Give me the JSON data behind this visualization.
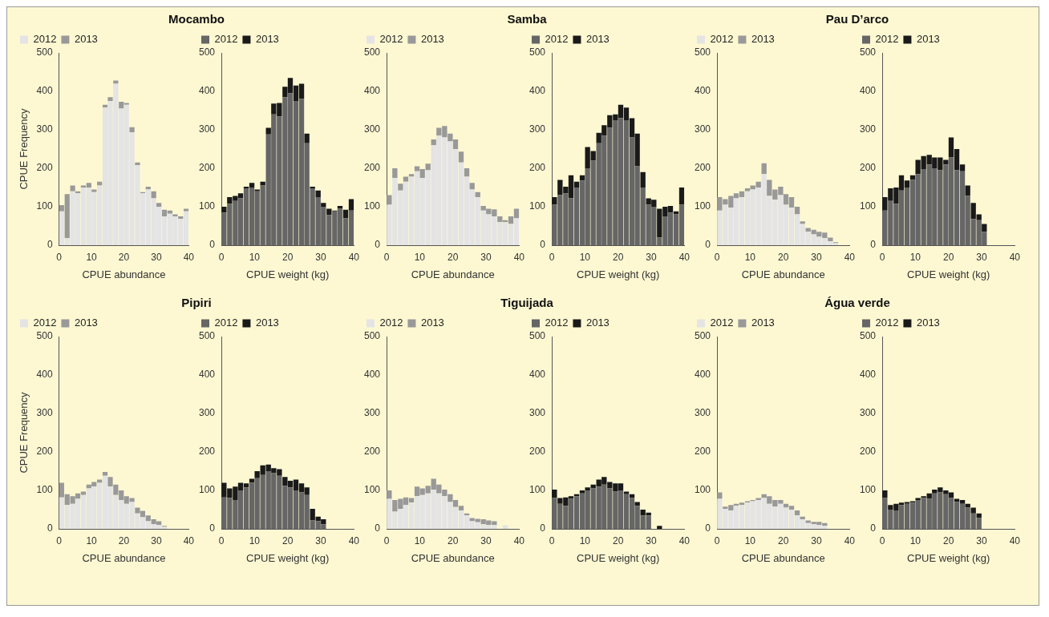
{
  "chart_data": [
    {
      "type": "bar",
      "title": "Mocambo",
      "xlabel": "CPUE abundance",
      "ylabel": "CPUE Frequency",
      "stacked": true,
      "legend": "top",
      "xlim": [
        0,
        40
      ],
      "xticks": [
        0,
        10,
        20,
        30,
        40
      ],
      "ylim": [
        0,
        500
      ],
      "yticks": [
        0,
        100,
        200,
        300,
        400,
        500
      ],
      "x": [
        0.8,
        2.5,
        4.2,
        5.8,
        7.5,
        9.2,
        10.8,
        12.5,
        14.2,
        15.8,
        17.5,
        19.2,
        20.8,
        22.5,
        24.2,
        25.8,
        27.5,
        29.2,
        30.8,
        32.5,
        34.2,
        35.8,
        37.5,
        39.2
      ],
      "series": [
        {
          "name": "2012",
          "color": "#e4e4e4",
          "values": [
            88,
            18,
            140,
            135,
            150,
            150,
            138,
            155,
            358,
            375,
            420,
            355,
            365,
            293,
            208,
            135,
            145,
            122,
            100,
            75,
            82,
            75,
            68,
            88
          ]
        },
        {
          "name": "2013",
          "color": "#999999",
          "values": [
            16,
            115,
            15,
            5,
            5,
            12,
            7,
            10,
            7,
            10,
            8,
            18,
            5,
            14,
            7,
            3,
            7,
            18,
            10,
            17,
            8,
            5,
            7,
            7
          ]
        }
      ]
    },
    {
      "type": "bar",
      "xlabel": "CPUE weight (kg)",
      "stacked": true,
      "legend": "top",
      "xlim": [
        0,
        40
      ],
      "xticks": [
        0,
        10,
        20,
        30,
        40
      ],
      "ylim": [
        0,
        500
      ],
      "yticks": [
        0,
        100,
        200,
        300,
        400,
        500
      ],
      "x": [
        0.8,
        2.5,
        4.2,
        5.8,
        7.5,
        9.2,
        10.8,
        12.5,
        14.2,
        15.8,
        17.5,
        19.2,
        20.8,
        22.5,
        24.2,
        25.8,
        27.5,
        29.2,
        30.8,
        32.5,
        34.2,
        35.8,
        37.5,
        39.2
      ],
      "series": [
        {
          "name": "2012",
          "color": "#666666",
          "values": [
            85,
            108,
            115,
            122,
            148,
            150,
            140,
            155,
            288,
            340,
            335,
            385,
            395,
            375,
            380,
            265,
            148,
            125,
            100,
            78,
            88,
            95,
            70,
            90
          ]
        },
        {
          "name": "2013",
          "color": "#1a1a1a",
          "values": [
            15,
            17,
            13,
            13,
            4,
            12,
            5,
            10,
            17,
            28,
            35,
            27,
            40,
            40,
            40,
            25,
            4,
            17,
            10,
            17,
            2,
            7,
            22,
            30
          ]
        }
      ]
    },
    {
      "type": "bar",
      "title": "Samba",
      "xlabel": "CPUE abundance",
      "stacked": true,
      "legend": "top",
      "xlim": [
        0,
        40
      ],
      "xticks": [
        0,
        10,
        20,
        30,
        40
      ],
      "ylim": [
        0,
        500
      ],
      "yticks": [
        0,
        100,
        200,
        300,
        400,
        500
      ],
      "x": [
        0.8,
        2.5,
        4.2,
        5.8,
        7.5,
        9.2,
        10.8,
        12.5,
        14.2,
        15.8,
        17.5,
        19.2,
        20.8,
        22.5,
        24.2,
        25.8,
        27.5,
        29.2,
        30.8,
        32.5,
        34.2,
        35.8,
        37.5,
        39.2
      ],
      "series": [
        {
          "name": "2012",
          "color": "#e4e4e4",
          "values": [
            105,
            175,
            142,
            165,
            178,
            192,
            175,
            195,
            260,
            285,
            280,
            270,
            250,
            215,
            178,
            145,
            125,
            90,
            80,
            75,
            60,
            60,
            55,
            70
          ]
        },
        {
          "name": "2013",
          "color": "#999999",
          "values": [
            25,
            25,
            18,
            13,
            7,
            13,
            23,
            17,
            15,
            20,
            30,
            20,
            25,
            28,
            22,
            17,
            13,
            12,
            15,
            18,
            15,
            5,
            20,
            25
          ]
        }
      ]
    },
    {
      "type": "bar",
      "xlabel": "CPUE weight (kg)",
      "stacked": true,
      "legend": "top",
      "xlim": [
        0,
        40
      ],
      "xticks": [
        0,
        10,
        20,
        30,
        40
      ],
      "ylim": [
        0,
        500
      ],
      "yticks": [
        0,
        100,
        200,
        300,
        400,
        500
      ],
      "x": [
        0.8,
        2.5,
        4.2,
        5.8,
        7.5,
        9.2,
        10.8,
        12.5,
        14.2,
        15.8,
        17.5,
        19.2,
        20.8,
        22.5,
        24.2,
        25.8,
        27.5,
        29.2,
        30.8,
        32.5,
        34.2,
        35.8,
        37.5,
        39.2
      ],
      "series": [
        {
          "name": "2012",
          "color": "#666666",
          "values": [
            105,
            130,
            135,
            122,
            150,
            168,
            200,
            220,
            265,
            285,
            305,
            325,
            330,
            325,
            280,
            205,
            150,
            105,
            100,
            20,
            75,
            85,
            80,
            105
          ]
        },
        {
          "name": "2013",
          "color": "#1a1a1a",
          "values": [
            20,
            40,
            17,
            60,
            15,
            14,
            55,
            25,
            27,
            27,
            33,
            15,
            35,
            33,
            50,
            85,
            40,
            17,
            18,
            75,
            25,
            17,
            8,
            45
          ]
        }
      ]
    },
    {
      "type": "bar",
      "title": "Pau D’arco",
      "xlabel": "CPUE abundance",
      "stacked": true,
      "legend": "top",
      "xlim": [
        0,
        40
      ],
      "xticks": [
        0,
        10,
        20,
        30,
        40
      ],
      "ylim": [
        0,
        500
      ],
      "yticks": [
        0,
        100,
        200,
        300,
        400,
        500
      ],
      "x": [
        0.8,
        2.5,
        4.2,
        5.8,
        7.5,
        9.2,
        10.8,
        12.5,
        14.2,
        15.8,
        17.5,
        19.2,
        20.8,
        22.5,
        24.2,
        25.8,
        27.5,
        29.2,
        30.8,
        32.5,
        34.2,
        35.8
      ],
      "series": [
        {
          "name": "2012",
          "color": "#e4e4e4",
          "values": [
            90,
            105,
            98,
            122,
            125,
            140,
            145,
            150,
            185,
            128,
            118,
            130,
            105,
            98,
            80,
            55,
            35,
            28,
            22,
            18,
            10,
            5
          ]
        },
        {
          "name": "2013",
          "color": "#999999",
          "values": [
            35,
            15,
            30,
            13,
            15,
            8,
            10,
            15,
            28,
            42,
            27,
            22,
            28,
            27,
            20,
            7,
            10,
            12,
            13,
            15,
            10,
            3
          ]
        }
      ]
    },
    {
      "type": "bar",
      "xlabel": "CPUE weight (kg)",
      "stacked": true,
      "legend": "top",
      "xlim": [
        0,
        40
      ],
      "xticks": [
        0,
        10,
        20,
        30,
        40
      ],
      "ylim": [
        0,
        500
      ],
      "yticks": [
        0,
        100,
        200,
        300,
        400,
        500
      ],
      "x": [
        0.8,
        2.5,
        4.2,
        5.8,
        7.5,
        9.2,
        10.8,
        12.5,
        14.2,
        15.8,
        17.5,
        19.2,
        20.8,
        22.5,
        24.2,
        25.8,
        27.5,
        29.2,
        30.8
      ],
      "series": [
        {
          "name": "2012",
          "color": "#666666",
          "values": [
            90,
            115,
            108,
            142,
            150,
            170,
            185,
            198,
            210,
            200,
            195,
            210,
            228,
            195,
            192,
            128,
            68,
            65,
            35
          ]
        },
        {
          "name": "2013",
          "color": "#1a1a1a",
          "values": [
            35,
            33,
            42,
            40,
            18,
            12,
            37,
            34,
            25,
            28,
            33,
            12,
            52,
            55,
            18,
            27,
            42,
            15,
            20
          ]
        }
      ]
    },
    {
      "type": "bar",
      "title": "Pipiri",
      "xlabel": "CPUE abundance",
      "ylabel": "CPUE Frequency",
      "stacked": true,
      "legend": "top",
      "xlim": [
        0,
        40
      ],
      "xticks": [
        0,
        10,
        20,
        30,
        40
      ],
      "ylim": [
        0,
        500
      ],
      "yticks": [
        0,
        100,
        200,
        300,
        400,
        500
      ],
      "x": [
        0.8,
        2.5,
        4.2,
        5.8,
        7.5,
        9.2,
        10.8,
        12.5,
        14.2,
        15.8,
        17.5,
        19.2,
        20.8,
        22.5,
        24.2,
        25.8,
        27.5,
        29.2,
        30.8,
        32.5
      ],
      "series": [
        {
          "name": "2012",
          "color": "#e4e4e4",
          "values": [
            82,
            62,
            65,
            78,
            88,
            105,
            110,
            120,
            138,
            110,
            88,
            75,
            65,
            70,
            40,
            30,
            20,
            12,
            10,
            5
          ]
        },
        {
          "name": "2013",
          "color": "#999999",
          "values": [
            38,
            28,
            20,
            14,
            9,
            10,
            12,
            8,
            10,
            25,
            27,
            25,
            20,
            10,
            15,
            17,
            15,
            13,
            10,
            3
          ]
        }
      ]
    },
    {
      "type": "bar",
      "xlabel": "CPUE weight (kg)",
      "stacked": true,
      "legend": "top",
      "xlim": [
        0,
        40
      ],
      "xticks": [
        0,
        10,
        20,
        30,
        40
      ],
      "ylim": [
        0,
        500
      ],
      "yticks": [
        0,
        100,
        200,
        300,
        400,
        500
      ],
      "x": [
        0.8,
        2.5,
        4.2,
        5.8,
        7.5,
        9.2,
        10.8,
        12.5,
        14.2,
        15.8,
        17.5,
        19.2,
        20.8,
        22.5,
        24.2,
        25.8,
        27.5,
        29.2,
        30.8
      ],
      "series": [
        {
          "name": "2012",
          "color": "#666666",
          "values": [
            82,
            80,
            75,
            100,
            108,
            120,
            132,
            140,
            150,
            145,
            138,
            112,
            108,
            100,
            95,
            88,
            22,
            20,
            12
          ]
        },
        {
          "name": "2013",
          "color": "#1a1a1a",
          "values": [
            38,
            25,
            35,
            20,
            10,
            10,
            18,
            25,
            17,
            13,
            17,
            23,
            17,
            28,
            23,
            20,
            30,
            12,
            13
          ]
        }
      ]
    },
    {
      "type": "bar",
      "title": "Tiguijada",
      "xlabel": "CPUE abundance",
      "stacked": true,
      "legend": "top",
      "xlim": [
        0,
        40
      ],
      "xticks": [
        0,
        10,
        20,
        30,
        40
      ],
      "ylim": [
        0,
        500
      ],
      "yticks": [
        0,
        100,
        200,
        300,
        400,
        500
      ],
      "x": [
        0.8,
        2.5,
        4.2,
        5.8,
        7.5,
        9.2,
        10.8,
        12.5,
        14.2,
        15.8,
        17.5,
        19.2,
        20.8,
        22.5,
        24.2,
        25.8,
        27.5,
        29.2,
        30.8,
        32.5,
        35.8
      ],
      "series": [
        {
          "name": "2012",
          "color": "#e4e4e4",
          "values": [
            78,
            45,
            52,
            62,
            68,
            85,
            88,
            92,
            102,
            92,
            85,
            70,
            57,
            48,
            35,
            20,
            17,
            12,
            10,
            10,
            10
          ]
        },
        {
          "name": "2013",
          "color": "#999999",
          "values": [
            22,
            30,
            26,
            20,
            12,
            25,
            17,
            20,
            28,
            23,
            17,
            20,
            18,
            12,
            5,
            8,
            9,
            13,
            12,
            10,
            0
          ]
        }
      ]
    },
    {
      "type": "bar",
      "xlabel": "CPUE weight (kg)",
      "stacked": true,
      "legend": "top",
      "xlim": [
        0,
        40
      ],
      "xticks": [
        0,
        10,
        20,
        30,
        40
      ],
      "ylim": [
        0,
        500
      ],
      "yticks": [
        0,
        100,
        200,
        300,
        400,
        500
      ],
      "x": [
        0.8,
        2.5,
        4.2,
        5.8,
        7.5,
        9.2,
        10.8,
        12.5,
        14.2,
        15.8,
        17.5,
        19.2,
        20.8,
        22.5,
        24.2,
        25.8,
        27.5,
        29.2,
        32.5
      ],
      "series": [
        {
          "name": "2012",
          "color": "#666666",
          "values": [
            80,
            65,
            60,
            78,
            85,
            92,
            100,
            105,
            110,
            115,
            105,
            97,
            100,
            90,
            80,
            60,
            35,
            35,
            0
          ]
        },
        {
          "name": "2013",
          "color": "#1a1a1a",
          "values": [
            22,
            15,
            22,
            7,
            5,
            8,
            8,
            10,
            18,
            20,
            17,
            21,
            18,
            7,
            10,
            10,
            15,
            7,
            8
          ]
        }
      ]
    },
    {
      "type": "bar",
      "title": "Água verde",
      "xlabel": "CPUE abundance",
      "stacked": true,
      "legend": "top",
      "xlim": [
        0,
        40
      ],
      "xticks": [
        0,
        10,
        20,
        30,
        40
      ],
      "ylim": [
        0,
        500
      ],
      "yticks": [
        0,
        100,
        200,
        300,
        400,
        500
      ],
      "x": [
        0.8,
        2.5,
        4.2,
        5.8,
        7.5,
        9.2,
        10.8,
        12.5,
        14.2,
        15.8,
        17.5,
        19.2,
        20.8,
        22.5,
        24.2,
        25.8,
        27.5,
        29.2,
        30.8,
        32.5
      ],
      "series": [
        {
          "name": "2012",
          "color": "#e4e4e4",
          "values": [
            78,
            52,
            48,
            60,
            62,
            68,
            72,
            75,
            80,
            65,
            58,
            65,
            55,
            50,
            35,
            25,
            15,
            12,
            10,
            8
          ]
        },
        {
          "name": "2013",
          "color": "#999999",
          "values": [
            17,
            6,
            14,
            5,
            6,
            4,
            3,
            5,
            10,
            20,
            17,
            10,
            10,
            10,
            13,
            7,
            7,
            6,
            8,
            7
          ]
        }
      ]
    },
    {
      "type": "bar",
      "xlabel": "CPUE weight (kg)",
      "stacked": true,
      "legend": "top",
      "xlim": [
        0,
        40
      ],
      "xticks": [
        0,
        10,
        20,
        30,
        40
      ],
      "ylim": [
        0,
        500
      ],
      "yticks": [
        0,
        100,
        200,
        300,
        400,
        500
      ],
      "x": [
        0.8,
        2.5,
        4.2,
        5.8,
        7.5,
        9.2,
        10.8,
        12.5,
        14.2,
        15.8,
        17.5,
        19.2,
        20.8,
        22.5,
        24.2,
        25.8,
        27.5,
        29.2
      ],
      "series": [
        {
          "name": "2012",
          "color": "#666666",
          "values": [
            80,
            50,
            48,
            62,
            65,
            68,
            75,
            80,
            78,
            92,
            95,
            90,
            80,
            70,
            65,
            55,
            40,
            28
          ]
        },
        {
          "name": "2013",
          "color": "#1a1a1a",
          "values": [
            20,
            12,
            17,
            6,
            5,
            4,
            5,
            5,
            14,
            10,
            13,
            10,
            15,
            8,
            10,
            10,
            15,
            12
          ]
        }
      ]
    }
  ]
}
